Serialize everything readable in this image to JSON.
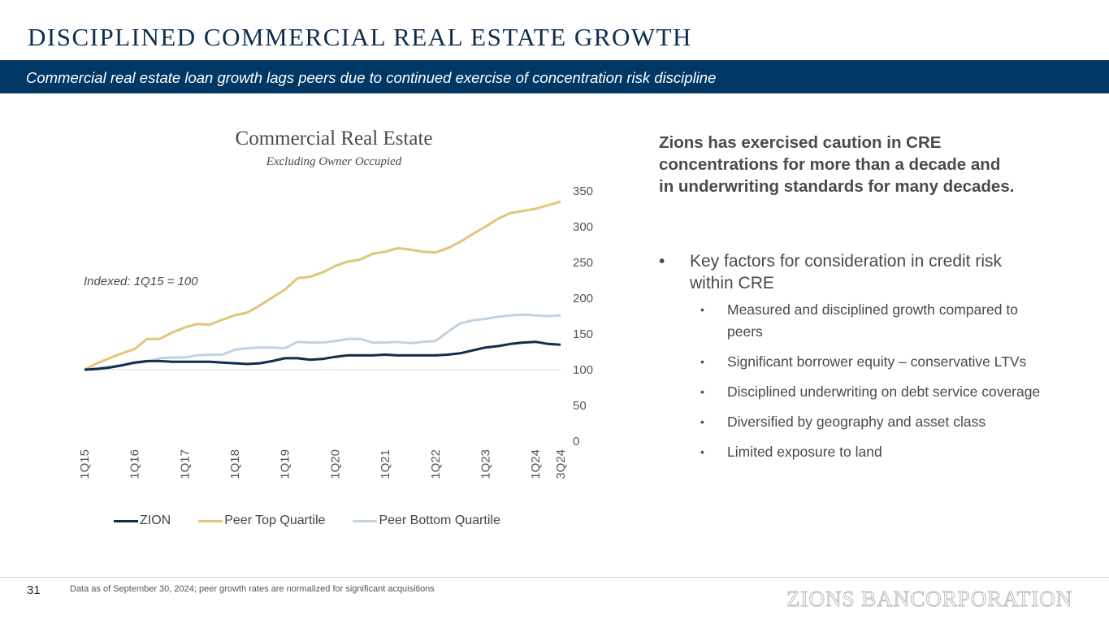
{
  "header": {
    "title": "DISCIPLINED COMMERCIAL REAL ESTATE GROWTH",
    "subtitle": "Commercial real estate loan growth lags peers due to continued exercise of concentration risk discipline"
  },
  "chart_data": {
    "type": "line",
    "title": "Commercial Real Estate",
    "subtitle": "Excluding Owner Occupied",
    "annotation": "Indexed: 1Q15 = 100",
    "ylim": [
      0,
      350
    ],
    "yticks": [
      "0",
      "50",
      "100",
      "150",
      "200",
      "250",
      "300",
      "350"
    ],
    "xticks": [
      "1Q15",
      "1Q16",
      "1Q17",
      "1Q18",
      "1Q19",
      "1Q20",
      "1Q21",
      "1Q22",
      "1Q23",
      "1Q24",
      "3Q24"
    ],
    "xtick_index": [
      0,
      4,
      8,
      12,
      16,
      20,
      24,
      28,
      32,
      36,
      38
    ],
    "x": [
      "1Q15",
      "2Q15",
      "3Q15",
      "4Q15",
      "1Q16",
      "2Q16",
      "3Q16",
      "4Q16",
      "1Q17",
      "2Q17",
      "3Q17",
      "4Q17",
      "1Q18",
      "2Q18",
      "3Q18",
      "4Q18",
      "1Q19",
      "2Q19",
      "3Q19",
      "4Q19",
      "1Q20",
      "2Q20",
      "3Q20",
      "4Q20",
      "1Q21",
      "2Q21",
      "3Q21",
      "4Q21",
      "1Q22",
      "2Q22",
      "3Q22",
      "4Q22",
      "1Q23",
      "2Q23",
      "3Q23",
      "4Q23",
      "1Q24",
      "2Q24",
      "3Q24"
    ],
    "grid": "horizontal baseline only",
    "legend_position": "bottom",
    "y_axis_position": "right",
    "series": [
      {
        "name": "ZION",
        "color": "#0f2d4e",
        "values": [
          100,
          101,
          103,
          106,
          110,
          112,
          112,
          111,
          111,
          111,
          111,
          110,
          109,
          108,
          109,
          112,
          116,
          116,
          114,
          115,
          118,
          120,
          120,
          120,
          121,
          120,
          120,
          120,
          120,
          121,
          123,
          127,
          131,
          133,
          136,
          138,
          139,
          136,
          135
        ]
      },
      {
        "name": "Peer Top Quartile",
        "color": "#e3c57a",
        "values": [
          100,
          109,
          116,
          123,
          129,
          143,
          143,
          152,
          159,
          164,
          163,
          170,
          176,
          180,
          190,
          201,
          212,
          228,
          230,
          236,
          245,
          251,
          254,
          262,
          265,
          270,
          268,
          265,
          264,
          270,
          279,
          290,
          300,
          311,
          319,
          322,
          325,
          330,
          335
        ]
      },
      {
        "name": "Peer Bottom Quartile",
        "color": "#c2d2de",
        "values": [
          100,
          102,
          104,
          107,
          109,
          111,
          116,
          117,
          117,
          120,
          121,
          121,
          128,
          130,
          131,
          131,
          130,
          139,
          138,
          138,
          140,
          143,
          143,
          138,
          138,
          139,
          137,
          139,
          140,
          153,
          165,
          169,
          171,
          174,
          176,
          177,
          176,
          175,
          176
        ]
      }
    ]
  },
  "right": {
    "heading": "Zions has exercised caution in CRE concentrations for more than a decade and in underwriting standards for many decades.",
    "bullet": "Key factors for consideration in credit risk within CRE",
    "bullet_marker": "•",
    "sub_bullets": [
      "Measured and disciplined growth compared to peers",
      "Significant borrower equity – conservative LTVs",
      "Disciplined underwriting on debt service coverage",
      "Diversified by geography and asset class",
      "Limited exposure to land"
    ]
  },
  "footer": {
    "page_number": "31",
    "note": "Data as of September 30, 2024; peer growth rates are normalized for significant acquisitions",
    "logo_text": "ZIONS BANCORPORATION"
  }
}
